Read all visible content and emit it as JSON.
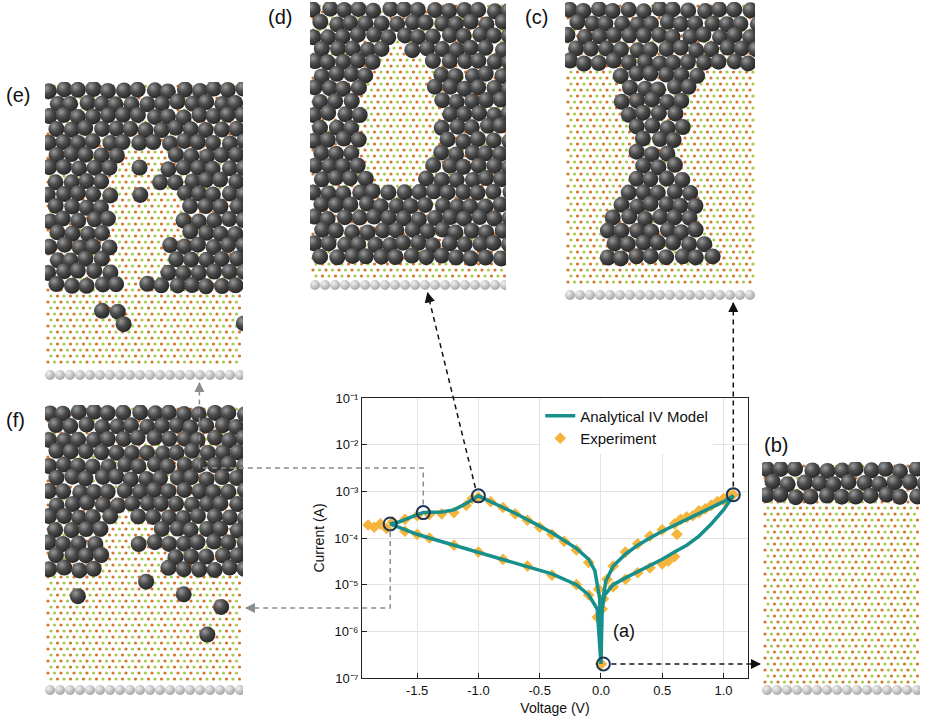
{
  "chart_data": {
    "type": "line",
    "xlabel": "Voltage (V)",
    "ylabel": "Current (A)",
    "log": "y",
    "grid": true,
    "legend": "upper right",
    "xlim": [
      -1.95,
      1.2
    ],
    "xticks": [
      -1.5,
      {
        "value": -1,
        "label": "-1.0"
      },
      -0.5,
      {
        "value": 0,
        "label": "0.0"
      },
      0.5,
      {
        "value": 1,
        "label": "1.0"
      }
    ],
    "ylim": [
      1e-07,
      0.1
    ],
    "yticks": [
      {
        "value": 1e-07,
        "label": "10⁻⁷"
      },
      {
        "value": 1e-06,
        "label": "10⁻⁶"
      },
      {
        "value": 1e-05,
        "label": "10⁻⁵"
      },
      {
        "value": 0.0001,
        "label": "10⁻⁴"
      },
      {
        "value": 0.001,
        "label": "10⁻³"
      },
      {
        "value": 0.01,
        "label": "10⁻²"
      },
      {
        "value": 0.1,
        "label": "10⁻¹"
      }
    ],
    "series": [
      {
        "name": "Analytical IV Model",
        "color": "#178f8a",
        "type": "line",
        "line_style": "solid",
        "x": [
          0,
          0.01,
          0.03,
          0.1,
          0.2,
          0.3,
          0.4,
          0.5,
          0.6,
          0.7,
          0.8,
          0.9,
          1.0,
          1.08,
          1.0,
          0.9,
          0.8,
          0.7,
          0.6,
          0.5,
          0.4,
          0.3,
          0.2,
          0.1,
          0.04,
          0.01,
          0,
          -0.01,
          -0.05,
          -0.1,
          -0.2,
          -0.3,
          -0.4,
          -0.5,
          -0.6,
          -0.7,
          -0.8,
          -0.9,
          -1.0,
          -1.1,
          -1.2,
          -1.3,
          -1.45,
          -1.55,
          -1.65,
          -1.72,
          -1.6,
          -1.5,
          -1.4,
          -1.2,
          -1.0,
          -0.8,
          -0.6,
          -0.4,
          -0.2,
          -0.1,
          -0.03,
          0
        ],
        "values": [
          2e-07,
          3e-06,
          6e-06,
          1e-05,
          1.4e-05,
          1.9e-05,
          2.6e-05,
          3.5e-05,
          5e-05,
          7e-05,
          0.00011,
          0.0002,
          0.0004,
          0.0008,
          0.0006,
          0.00045,
          0.00034,
          0.00026,
          0.00019,
          0.00014,
          0.0001,
          7e-05,
          4.5e-05,
          2.5e-05,
          1.2e-05,
          4e-06,
          2e-07,
          5e-06,
          2e-05,
          3.5e-05,
          6e-05,
          9e-05,
          0.00013,
          0.00018,
          0.00025,
          0.00034,
          0.00045,
          0.0006,
          0.0008,
          0.00055,
          0.0004,
          0.00036,
          0.00035,
          0.00028,
          0.00022,
          0.0002,
          0.00015,
          0.00012,
          0.0001,
          7e-05,
          5e-05,
          3.5e-05,
          2.5e-05,
          1.7e-05,
          1e-05,
          6e-06,
          3e-06,
          2e-07
        ]
      },
      {
        "name": "Experiment",
        "color": "#f5b43c",
        "type": "scatter",
        "marker": "diamond",
        "x": [
          0,
          0.02,
          0.1,
          0.2,
          0.3,
          0.4,
          0.5,
          0.55,
          0.6,
          0.62,
          0.65,
          0.7,
          0.75,
          0.8,
          0.85,
          0.9,
          0.95,
          1.0,
          1.05,
          1.08,
          1.0,
          0.9,
          0.8,
          0.7,
          0.6,
          0.5,
          0.4,
          0.3,
          0.2,
          0.1,
          0.05,
          0.01,
          0,
          -0.02,
          -0.1,
          -0.2,
          -0.3,
          -0.4,
          -0.5,
          -0.6,
          -0.7,
          -0.8,
          -0.9,
          -1.0,
          -1.05,
          -1.1,
          -1.2,
          -1.3,
          -1.4,
          -1.5,
          -1.6,
          -1.7,
          -1.8,
          -1.9,
          -1.85,
          -1.75,
          -1.6,
          -1.5,
          -1.4,
          -1.2,
          -1.0,
          -0.8,
          -0.6,
          -0.4,
          -0.2,
          -0.1,
          -0.03,
          0
        ],
        "values": [
          2e-07,
          5e-06,
          9e-06,
          1.3e-05,
          1.8e-05,
          2.3e-05,
          2.8e-05,
          3.2e-05,
          4e-05,
          0.00012,
          0.00025,
          0.00028,
          0.0003,
          0.00035,
          0.00042,
          0.0005,
          0.0006,
          0.0007,
          0.0008,
          0.00085,
          0.00065,
          0.0005,
          0.00038,
          0.00028,
          0.0002,
          0.00015,
          0.00011,
          7.5e-05,
          5e-05,
          2.5e-05,
          1.3e-05,
          3e-06,
          2e-07,
          8e-06,
          3e-05,
          5.5e-05,
          8.5e-05,
          0.00012,
          0.00017,
          0.00024,
          0.00033,
          0.00045,
          0.0006,
          0.00075,
          0.0007,
          0.0005,
          0.00035,
          0.00033,
          0.00032,
          0.0003,
          0.00025,
          0.00022,
          0.0002,
          0.00019,
          0.00017,
          0.00016,
          0.00014,
          0.00012,
          0.0001,
          7e-05,
          5e-05,
          3.5e-05,
          2.5e-05,
          1.6e-05,
          1e-05,
          6e-06,
          2e-06,
          2e-07
        ]
      }
    ],
    "annotations": [
      {
        "text": "(a)",
        "x": 0.08,
        "y": 1e-06
      }
    ],
    "states": [
      {
        "panel": "(b)",
        "x": 0.02,
        "y": 2e-07
      },
      {
        "panel": "(c)",
        "x": 1.08,
        "y": 0.00085
      },
      {
        "panel": "(d)",
        "x": -1.0,
        "y": 0.0008
      },
      {
        "panel": "(e)",
        "x": -1.45,
        "y": 0.00035
      },
      {
        "panel": "(f)",
        "x": -1.72,
        "y": 0.0002
      }
    ]
  }
}
